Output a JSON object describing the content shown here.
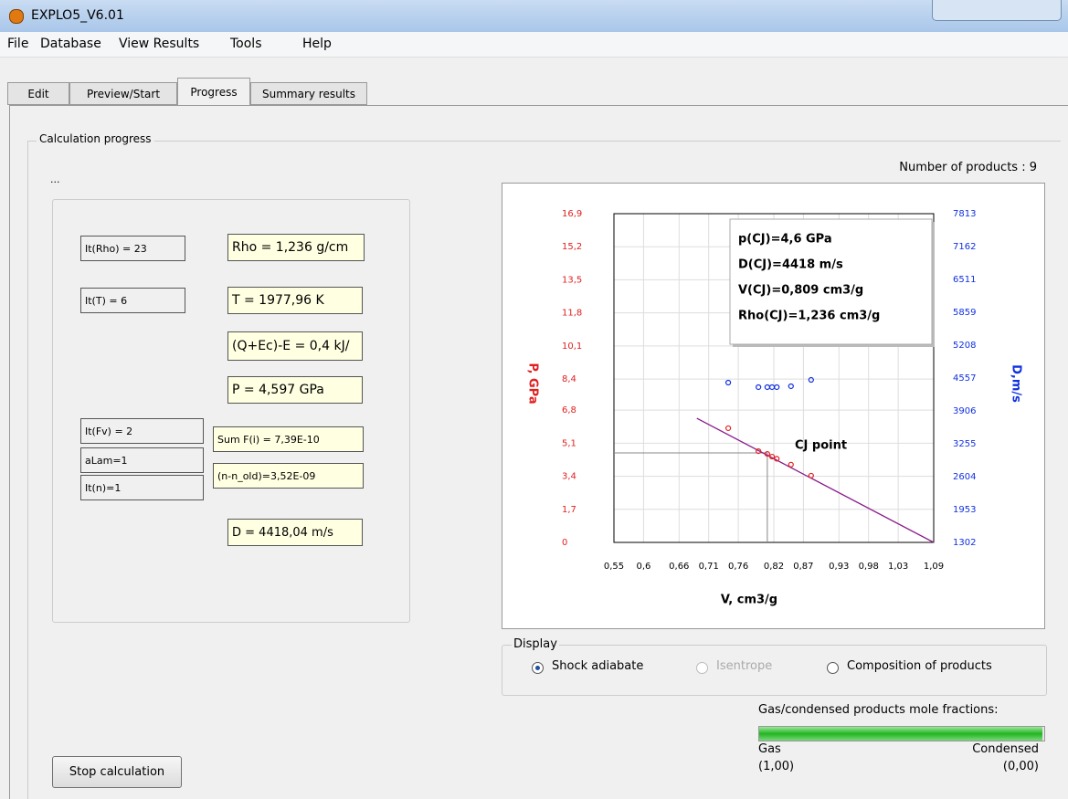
{
  "window": {
    "title": "EXPLO5_V6.01"
  },
  "menu": [
    "File",
    "Database",
    "View Results",
    "Tools",
    "Help"
  ],
  "tabs": [
    "Edit",
    "Preview/Start",
    "Progress",
    "Summary results"
  ],
  "active_tab": 2,
  "group_title": "Calculation progress",
  "status": "...",
  "fields": [
    {
      "text": "It(Rho) = 23"
    },
    {
      "text": "Rho = 1,236  g/cm"
    },
    {
      "text": "It(T) = 6"
    },
    {
      "text": "T = 1977,96  K"
    },
    {
      "text": "(Q+Ec)-E = 0,4  kJ/"
    },
    {
      "text": "P = 4,597  GPa"
    },
    {
      "text": "It(Fv) = 2"
    },
    {
      "text": "aLam=1"
    },
    {
      "text": "It(n)=1"
    },
    {
      "text": "Sum F(i) = 7,39E-10"
    },
    {
      "text": "(n-n_old)=3,52E-09"
    },
    {
      "text": "D = 4418,04 m/s"
    }
  ],
  "number_of_products": "Number of products : 9",
  "chart_data": {
    "type": "scatter",
    "x_label": "V, cm3/g",
    "y_label": "P, GPa",
    "y2_label": "D,m/s",
    "annotation": [
      "p(CJ)=4,6  GPa",
      "D(CJ)=4418  m/s",
      "V(CJ)=0,809  cm3/g",
      "Rho(CJ)=1,236  cm3/g"
    ],
    "cj_label": "CJ point",
    "cj": {
      "x": 0.809,
      "y": 4.6
    },
    "grid": true,
    "xlim": [
      0.55,
      1.09
    ],
    "ylim": [
      0,
      16.9
    ],
    "y2lim": [
      1302,
      7813
    ],
    "xticks": [
      {
        "value": 0.55,
        "label": "0,55"
      },
      {
        "value": 0.6,
        "label": "0,6"
      },
      {
        "value": 0.66,
        "label": "0,66"
      },
      {
        "value": 0.71,
        "label": "0,71"
      },
      {
        "value": 0.76,
        "label": "0,76"
      },
      {
        "value": 0.82,
        "label": "0,82"
      },
      {
        "value": 0.87,
        "label": "0,87"
      },
      {
        "value": 0.93,
        "label": "0,93"
      },
      {
        "value": 0.98,
        "label": "0,98"
      },
      {
        "value": 1.03,
        "label": "1,03"
      },
      {
        "value": 1.09,
        "label": "1,09"
      }
    ],
    "yticks": [
      0,
      {
        "value": 1.7,
        "label": "1,7"
      },
      {
        "value": 3.4,
        "label": "3,4"
      },
      {
        "value": 5.1,
        "label": "5,1"
      },
      {
        "value": 6.8,
        "label": "6,8"
      },
      {
        "value": 8.4,
        "label": "8,4"
      },
      {
        "value": 10.1,
        "label": "10,1"
      },
      {
        "value": 11.8,
        "label": "11,8"
      },
      {
        "value": 13.5,
        "label": "13,5"
      },
      {
        "value": 15.2,
        "label": "15,2"
      },
      {
        "value": 16.9,
        "label": "16,9"
      }
    ],
    "y2ticks": [
      1302,
      1953,
      2604,
      3255,
      3906,
      4557,
      5208,
      5859,
      6511,
      7162,
      7813
    ],
    "series": [
      {
        "color": "#e02020",
        "x": [
          0.743,
          0.794,
          0.809,
          0.817,
          0.825,
          0.849,
          0.883
        ],
        "values": [
          5.87,
          4.69,
          4.55,
          4.41,
          4.3,
          4.0,
          3.43
        ]
      },
      {
        "color": "#1030e0",
        "axis": "y2",
        "x": [
          0.743,
          0.794,
          0.809,
          0.817,
          0.825,
          0.849,
          0.883
        ],
        "values": [
          4467,
          4377,
          4377,
          4377,
          4377,
          4395,
          4521
        ]
      }
    ],
    "line": {
      "color": "#8a1a8a",
      "x": [
        0.69,
        1.09
      ],
      "values": [
        6.38,
        0
      ]
    }
  },
  "display": {
    "title": "Display",
    "options": [
      "Shock adiabate",
      "Isentrope",
      "Composition of products"
    ],
    "selected": 0,
    "disabled": 1
  },
  "fractions": {
    "title": "Gas/condensed products mole fractions:",
    "gas": "Gas",
    "gas_value": "(1,00)",
    "condensed": "Condensed",
    "condensed_value": "(0,00)",
    "gas_fraction": 1
  },
  "stop_button": "Stop calculation"
}
